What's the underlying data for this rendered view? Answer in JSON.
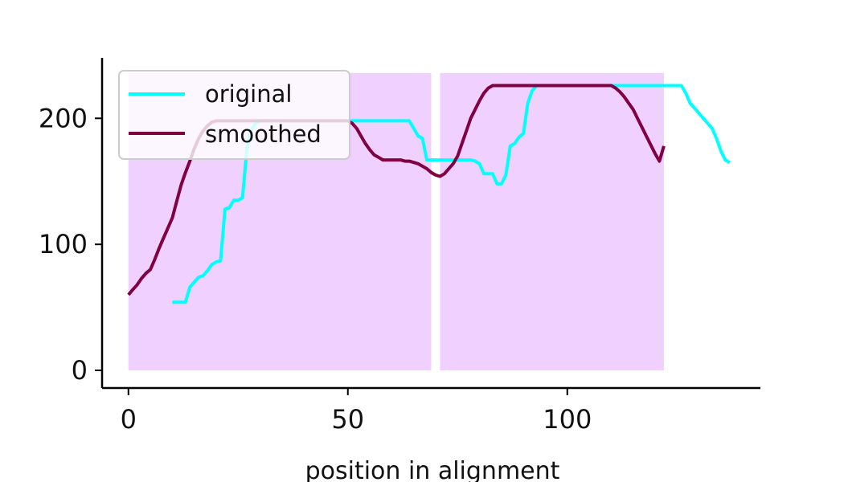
{
  "chart_data": {
    "type": "line",
    "title": "",
    "xlabel": "position in alignment",
    "ylabel": "",
    "xlim": [
      -6,
      144
    ],
    "ylim": [
      -14,
      248
    ],
    "xticks": [
      0,
      50,
      100
    ],
    "yticks": [
      0,
      100,
      200
    ],
    "legend": {
      "placement": "top-left"
    },
    "grid": false,
    "colors": {
      "original": "#00ffff",
      "smoothed": "#800040",
      "shade": "#efd0ff"
    },
    "shaded_regions": [
      {
        "x_start": 0,
        "x_end": 69,
        "y_start": 0,
        "y_end": 236
      },
      {
        "x_start": 71,
        "x_end": 122,
        "y_start": 0,
        "y_end": 236
      }
    ],
    "series": [
      {
        "name": "original",
        "color": "#00ffff",
        "x": [
          10,
          13,
          14,
          15,
          16,
          17,
          18,
          19,
          20,
          21,
          22,
          23,
          24,
          25,
          26,
          27,
          28,
          29,
          30,
          50,
          51,
          64,
          65,
          66,
          67,
          68,
          69,
          70,
          71,
          72,
          73,
          74,
          75,
          76,
          77,
          78,
          79,
          80,
          81,
          82,
          83,
          84,
          85,
          86,
          87,
          88,
          89,
          90,
          91,
          92,
          93,
          126,
          127,
          128,
          129,
          130,
          131,
          132,
          133,
          134,
          135,
          136,
          137
        ],
        "y": [
          54,
          54,
          66,
          70,
          74,
          75,
          79,
          84,
          86,
          87,
          128,
          129,
          135,
          135,
          137,
          176,
          191,
          196,
          198,
          198,
          198,
          198,
          192,
          186,
          184,
          167,
          167,
          167,
          167,
          167,
          167,
          167,
          167,
          167,
          167,
          167,
          166,
          164,
          156,
          156,
          156,
          148,
          148,
          155,
          178,
          180,
          185,
          188,
          212,
          222,
          226,
          226,
          220,
          212,
          208,
          204,
          200,
          196,
          192,
          184,
          174,
          167,
          165
        ]
      },
      {
        "name": "smoothed",
        "color": "#800040",
        "x": [
          0,
          1,
          2,
          3,
          4,
          5,
          6,
          7,
          8,
          9,
          10,
          11,
          12,
          13,
          14,
          15,
          16,
          17,
          18,
          19,
          20,
          21,
          22,
          23,
          24,
          25,
          26,
          27,
          28,
          29,
          30,
          45,
          46,
          47,
          48,
          49,
          50,
          51,
          52,
          53,
          54,
          55,
          56,
          57,
          58,
          59,
          60,
          61,
          62,
          63,
          64,
          65,
          66,
          67,
          68,
          69,
          70,
          71,
          72,
          73,
          74,
          75,
          76,
          77,
          78,
          79,
          80,
          81,
          82,
          83,
          84,
          110,
          111,
          112,
          113,
          114,
          115,
          116,
          117,
          118,
          119,
          120,
          121,
          122
        ],
        "y": [
          60,
          64,
          68,
          73,
          77,
          80,
          88,
          97,
          105,
          113,
          121,
          134,
          147,
          157,
          166,
          176,
          184,
          190,
          194,
          197,
          198,
          198,
          198,
          198,
          198,
          198,
          198,
          198,
          198,
          198,
          198,
          198,
          198,
          198,
          198,
          198,
          198,
          196,
          192,
          186,
          180,
          175,
          171,
          169,
          167,
          167,
          167,
          167,
          167,
          166,
          166,
          165,
          164,
          162,
          160,
          157,
          155,
          154,
          156,
          160,
          164,
          170,
          180,
          190,
          200,
          207,
          214,
          220,
          224,
          226,
          226,
          226,
          224,
          221,
          217,
          212,
          207,
          200,
          193,
          186,
          179,
          172,
          166,
          178
        ]
      }
    ]
  }
}
